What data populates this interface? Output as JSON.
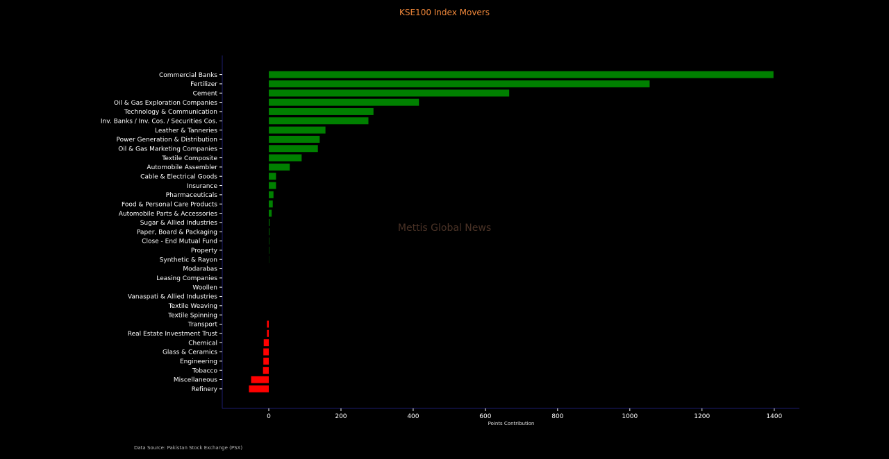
{
  "title": "KSE100 Index Movers",
  "watermark": "Mettis Global News",
  "source_note": "Data Source: Pakistan Stock Exchange (PSX)",
  "colors": {
    "background": "#000000",
    "positive": "#008000",
    "negative": "#ff0000",
    "title": "#f0883a",
    "axis": "#1c1c6e"
  },
  "chart_data": {
    "type": "bar",
    "orientation": "horizontal",
    "title": "KSE100 Index Movers",
    "xlabel": "Points Contribution",
    "ylabel": "",
    "xlim": [
      -128,
      1470
    ],
    "xticks": [
      0,
      200,
      400,
      600,
      800,
      1000,
      1200,
      1400
    ],
    "grid": false,
    "categories": [
      "Commercial Banks",
      "Fertilizer",
      "Cement",
      "Oil & Gas Exploration Companies",
      "Technology & Communication",
      "Inv. Banks / Inv. Cos. / Securities Cos.",
      "Leather & Tanneries",
      "Power Generation & Distribution",
      "Oil & Gas Marketing Companies",
      "Textile Composite",
      "Automobile Assembler",
      "Cable & Electrical Goods",
      "Insurance",
      "Pharmaceuticals",
      "Food & Personal Care Products",
      "Automobile Parts & Accessories",
      "Sugar & Allied Industries",
      "Paper, Board & Packaging",
      "Close - End Mutual Fund",
      "Property",
      "Synthetic & Rayon",
      "Modarabas",
      "Leasing Companies",
      "Woollen",
      "Vanaspati & Allied Industries",
      "Textile Weaving",
      "Textile Spinning",
      "Transport",
      "Real Estate Investment Trust",
      "Chemical",
      "Glass & Ceramics",
      "Engineering",
      "Tobacco",
      "Miscellaneous",
      "Refinery"
    ],
    "values": [
      1398,
      1055,
      666,
      416,
      290,
      276,
      157,
      141,
      136,
      91,
      58,
      20,
      20,
      13,
      11,
      8,
      2,
      1.5,
      1,
      1,
      0.5,
      0,
      0,
      0,
      0,
      0,
      0,
      -5,
      -5,
      -14,
      -15,
      -15,
      -16,
      -49,
      -55
    ]
  }
}
